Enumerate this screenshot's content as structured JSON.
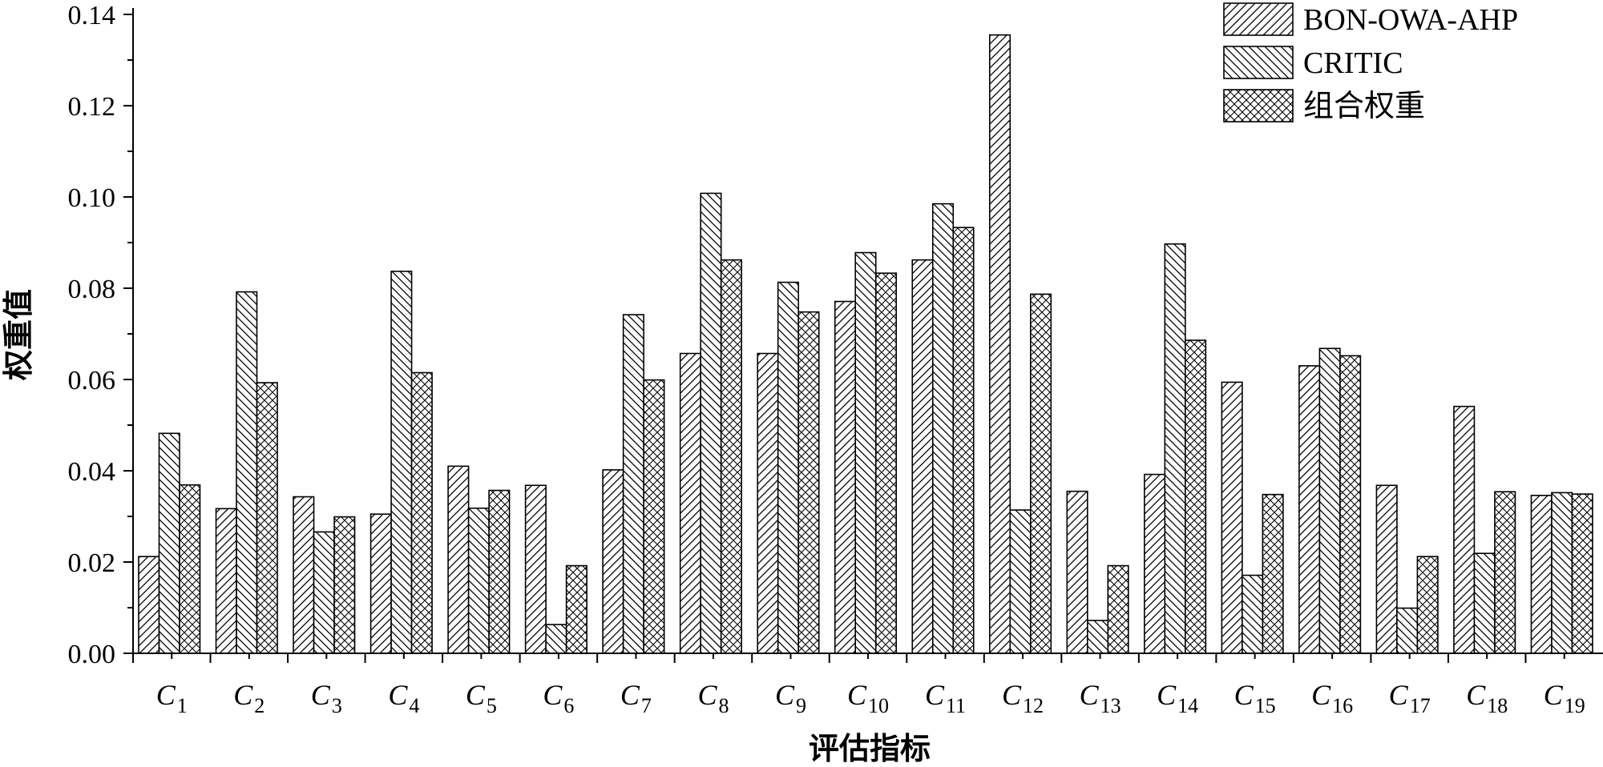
{
  "chart_data": {
    "type": "bar",
    "ylabel": "权重值",
    "xlabel": "评估指标",
    "ylim": [
      0,
      0.14
    ],
    "yticks": [
      "0.00",
      "0.02",
      "0.04",
      "0.06",
      "0.08",
      "0.10",
      "0.12",
      "0.14"
    ],
    "categories": [
      {
        "base": "C",
        "sub": "1"
      },
      {
        "base": "C",
        "sub": "2"
      },
      {
        "base": "C",
        "sub": "3"
      },
      {
        "base": "C",
        "sub": "4"
      },
      {
        "base": "C",
        "sub": "5"
      },
      {
        "base": "C",
        "sub": "6"
      },
      {
        "base": "C",
        "sub": "7"
      },
      {
        "base": "C",
        "sub": "8"
      },
      {
        "base": "C",
        "sub": "9"
      },
      {
        "base": "C",
        "sub": "10"
      },
      {
        "base": "C",
        "sub": "11"
      },
      {
        "base": "C",
        "sub": "12"
      },
      {
        "base": "C",
        "sub": "13"
      },
      {
        "base": "C",
        "sub": "14"
      },
      {
        "base": "C",
        "sub": "15"
      },
      {
        "base": "C",
        "sub": "16"
      },
      {
        "base": "C",
        "sub": "17"
      },
      {
        "base": "C",
        "sub": "18"
      },
      {
        "base": "C",
        "sub": "19"
      }
    ],
    "series": [
      {
        "name": "BON-OWA-AHP",
        "pattern": "forward-diagonal",
        "values": [
          0.0212,
          0.0317,
          0.0343,
          0.0305,
          0.041,
          0.0368,
          0.0402,
          0.0657,
          0.0657,
          0.0771,
          0.0862,
          0.1355,
          0.0355,
          0.0392,
          0.0594,
          0.063,
          0.0368,
          0.0541,
          0.0346
        ]
      },
      {
        "name": "CRITIC",
        "pattern": "back-diagonal",
        "values": [
          0.0482,
          0.0792,
          0.0266,
          0.0837,
          0.0318,
          0.0063,
          0.0742,
          0.1008,
          0.0813,
          0.0878,
          0.0985,
          0.0314,
          0.0072,
          0.0897,
          0.0171,
          0.0668,
          0.0099,
          0.0219,
          0.0352
        ]
      },
      {
        "name": "组合权重",
        "pattern": "crosshatch",
        "values": [
          0.0369,
          0.0593,
          0.0299,
          0.0615,
          0.0357,
          0.0192,
          0.0599,
          0.0862,
          0.0748,
          0.0833,
          0.0933,
          0.0787,
          0.0192,
          0.0686,
          0.0348,
          0.0652,
          0.0212,
          0.0354,
          0.0349
        ]
      }
    ],
    "legend_position": "top-right",
    "grid": false
  }
}
